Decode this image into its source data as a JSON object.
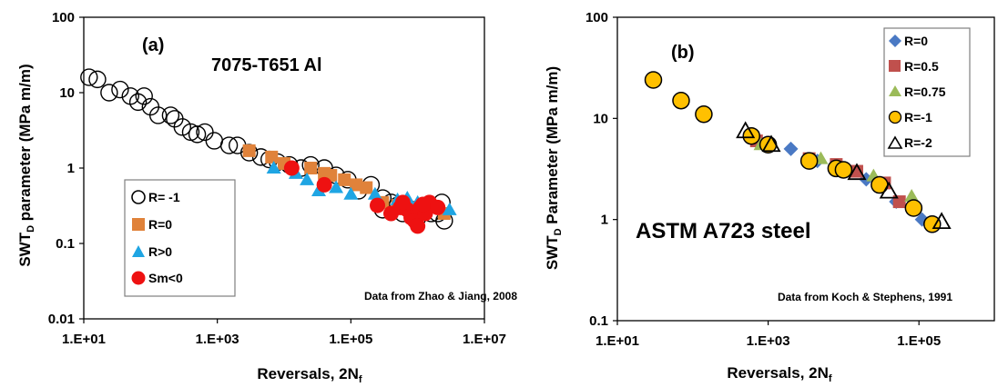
{
  "colors": {
    "open_circle": "#000000",
    "orange": "#E0823A",
    "blue": "#1FA5E3",
    "red": "#EE1111",
    "steel_blue": "#4A79C4",
    "brown": "#C0504D",
    "green": "#9BBB59",
    "yellow": "#FFC000",
    "legend_border": "#7F7F7F"
  },
  "chart_data": [
    {
      "type": "scatter",
      "panel": "(a)",
      "title": "7075-T651 Al",
      "annotation": "Data from Zhao & Jiang, 2008",
      "xlabel": "Reversals, 2N",
      "xlabel_sub": "f",
      "ylabel_pre": "SWT",
      "ylabel_sub": "D",
      "ylabel_post": " parameter (MPa m/m)",
      "xscale": "log",
      "yscale": "log",
      "xlim": [
        10,
        10000000
      ],
      "ylim": [
        0.01,
        100
      ],
      "xticks": [
        "1.E+01",
        "1.E+03",
        "1.E+05",
        "1.E+07"
      ],
      "xtick_values": [
        10,
        1000,
        100000,
        10000000
      ],
      "yticks": [
        "0.01",
        "0.1",
        "1",
        "10",
        "100"
      ],
      "ytick_values": [
        0.01,
        0.1,
        1,
        10,
        100
      ],
      "legend_position": "bottom-left",
      "series": [
        {
          "name": "R= -1",
          "marker": "circle-open",
          "color_key": "open_circle",
          "points": [
            [
              12,
              16
            ],
            [
              16,
              15
            ],
            [
              24,
              10
            ],
            [
              35,
              11
            ],
            [
              50,
              9
            ],
            [
              65,
              7.5
            ],
            [
              80,
              9
            ],
            [
              100,
              6.5
            ],
            [
              130,
              5
            ],
            [
              200,
              5
            ],
            [
              230,
              4.5
            ],
            [
              300,
              3.5
            ],
            [
              400,
              3
            ],
            [
              500,
              2.8
            ],
            [
              650,
              3
            ],
            [
              900,
              2.3
            ],
            [
              1500,
              2
            ],
            [
              2000,
              2
            ],
            [
              3000,
              1.6
            ],
            [
              4500,
              1.4
            ],
            [
              6000,
              1.3
            ],
            [
              8000,
              1.2
            ],
            [
              12000,
              1.1
            ],
            [
              18000,
              1.0
            ],
            [
              25000,
              1.1
            ],
            [
              40000,
              1.0
            ],
            [
              60000,
              0.8
            ],
            [
              90000,
              0.7
            ],
            [
              130000,
              0.5
            ],
            [
              200000,
              0.6
            ],
            [
              300000,
              0.4
            ],
            [
              400000,
              0.35
            ],
            [
              500000,
              0.32
            ],
            [
              700000,
              0.3
            ],
            [
              900000,
              0.28
            ],
            [
              1200000,
              0.28
            ],
            [
              1600000,
              0.25
            ],
            [
              2000000,
              0.25
            ],
            [
              2500000,
              0.2
            ],
            [
              1000000,
              0.22
            ],
            [
              600000,
              0.25
            ],
            [
              300000,
              0.28
            ],
            [
              2300000,
              0.35
            ]
          ]
        },
        {
          "name": "R=0",
          "marker": "square",
          "color_key": "orange",
          "points": [
            [
              3000,
              1.7
            ],
            [
              6500,
              1.4
            ],
            [
              10000,
              1.15
            ],
            [
              25000,
              1.0
            ],
            [
              40000,
              0.85
            ],
            [
              50000,
              0.8
            ],
            [
              80000,
              0.7
            ],
            [
              120000,
              0.6
            ],
            [
              170000,
              0.55
            ],
            [
              300000,
              0.35
            ],
            [
              500000,
              0.32
            ],
            [
              1000000,
              0.3
            ],
            [
              2500000,
              0.25
            ]
          ]
        },
        {
          "name": "R>0",
          "marker": "triangle",
          "color_key": "blue",
          "points": [
            [
              7000,
              1.0
            ],
            [
              15000,
              0.85
            ],
            [
              22000,
              0.7
            ],
            [
              33000,
              0.5
            ],
            [
              60000,
              0.55
            ],
            [
              100000,
              0.45
            ],
            [
              230000,
              0.45
            ],
            [
              500000,
              0.38
            ],
            [
              700000,
              0.4
            ],
            [
              1000000,
              0.35
            ],
            [
              3000000,
              0.28
            ]
          ]
        },
        {
          "name": "Sm<0",
          "marker": "circle",
          "color_key": "red",
          "points": [
            [
              13000,
              1.0
            ],
            [
              40000,
              0.6
            ],
            [
              250000,
              0.32
            ],
            [
              400000,
              0.25
            ],
            [
              550000,
              0.3
            ],
            [
              700000,
              0.28
            ],
            [
              800000,
              0.22
            ],
            [
              900000,
              0.2
            ],
            [
              1000000,
              0.17
            ],
            [
              1100000,
              0.3
            ],
            [
              1300000,
              0.25
            ],
            [
              1500000,
              0.35
            ],
            [
              2000000,
              0.3
            ],
            [
              1200000,
              0.33
            ],
            [
              600000,
              0.35
            ]
          ]
        }
      ]
    },
    {
      "type": "scatter",
      "panel": "(b)",
      "title": "ASTM A723 steel",
      "annotation": "Data from Koch & Stephens, 1991",
      "xlabel": "Reversals, 2N",
      "xlabel_sub": "f",
      "ylabel_pre": "SWT",
      "ylabel_sub": "D",
      "ylabel_post": " Parameter (MPa  m/m)",
      "xscale": "log",
      "yscale": "log",
      "xlim": [
        10,
        1000000
      ],
      "ylim": [
        0.1,
        100
      ],
      "xticks": [
        "1.E+01",
        "1.E+03",
        "1.E+05"
      ],
      "xtick_values": [
        10,
        1000,
        100000
      ],
      "yticks": [
        "0.1",
        "1",
        "10",
        "100"
      ],
      "ytick_values": [
        0.1,
        1,
        10,
        100
      ],
      "legend_position": "top-right",
      "series": [
        {
          "name": "R=0",
          "marker": "diamond",
          "color_key": "steel_blue",
          "points": [
            [
              1000,
              5.5
            ],
            [
              2000,
              5
            ],
            [
              4500,
              3.8
            ],
            [
              10000,
              3.2
            ],
            [
              20000,
              2.5
            ],
            [
              50000,
              1.5
            ],
            [
              110000,
              1.0
            ]
          ]
        },
        {
          "name": "R=0.5",
          "marker": "square",
          "color_key": "brown",
          "points": [
            [
              700,
              6.0
            ],
            [
              3500,
              4.0
            ],
            [
              8000,
              3.5
            ],
            [
              15000,
              3.0
            ],
            [
              35000,
              2.3
            ],
            [
              55000,
              1.5
            ]
          ]
        },
        {
          "name": "R=0.75",
          "marker": "triangle",
          "color_key": "green",
          "points": [
            [
              800,
              5.5
            ],
            [
              5000,
              4.0
            ],
            [
              25000,
              2.7
            ],
            [
              80000,
              1.7
            ]
          ]
        },
        {
          "name": "R=-1",
          "marker": "circle-yellow",
          "color_key": "yellow",
          "points": [
            [
              30,
              24
            ],
            [
              70,
              15
            ],
            [
              140,
              11
            ],
            [
              600,
              6.7
            ],
            [
              1000,
              5.5
            ],
            [
              3500,
              3.8
            ],
            [
              8000,
              3.2
            ],
            [
              10000,
              3.1
            ],
            [
              30000,
              2.2
            ],
            [
              85000,
              1.3
            ],
            [
              150000,
              0.9
            ]
          ]
        },
        {
          "name": "R=-2",
          "marker": "triangle-open",
          "color_key": "open_circle",
          "points": [
            [
              500,
              7.5
            ],
            [
              1100,
              5.5
            ],
            [
              15000,
              2.9
            ],
            [
              40000,
              1.9
            ],
            [
              200000,
              0.95
            ]
          ]
        }
      ]
    }
  ]
}
